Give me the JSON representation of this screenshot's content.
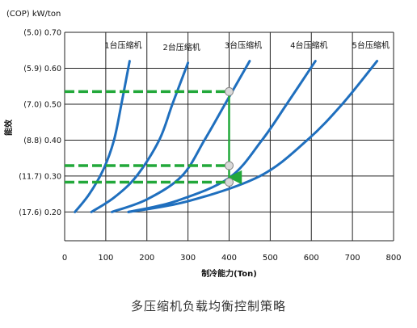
{
  "caption": "多压缩机负载均衡控制策略",
  "colors": {
    "curve": "#1f6fbe",
    "guide": "#22a83a",
    "grid": "#222222",
    "marker_fill": "#d9d9d9",
    "text": "#111111"
  },
  "chart_data": {
    "type": "line",
    "title": "",
    "ylabel_top": "(COP) kW/ton",
    "ylabel_side": "能效",
    "xlabel": "制冷能力(Ton)",
    "xlim": [
      0,
      800
    ],
    "ylim": [
      0.12,
      0.7
    ],
    "x_ticks": [
      0,
      100,
      200,
      300,
      400,
      500,
      600,
      700,
      800
    ],
    "y_ticks": [
      {
        "value": 0.7,
        "label": "(5.0) 0.70"
      },
      {
        "value": 0.6,
        "label": "(5.9) 0.60"
      },
      {
        "value": 0.5,
        "label": "(7.0) 0.50"
      },
      {
        "value": 0.4,
        "label": "(8.8) 0.40"
      },
      {
        "value": 0.3,
        "label": "(11.7) 0.30"
      },
      {
        "value": 0.2,
        "label": "(17.6) 0.20"
      }
    ],
    "grid": true,
    "series": [
      {
        "name": "1台压缩机",
        "points": [
          [
            25,
            0.2
          ],
          [
            60,
            0.25
          ],
          [
            95,
            0.32
          ],
          [
            120,
            0.4
          ],
          [
            138,
            0.5
          ],
          [
            158,
            0.62
          ]
        ]
      },
      {
        "name": "2台压缩机",
        "points": [
          [
            65,
            0.2
          ],
          [
            120,
            0.24
          ],
          [
            175,
            0.3
          ],
          [
            230,
            0.4
          ],
          [
            262,
            0.5
          ],
          [
            300,
            0.615
          ]
        ]
      },
      {
        "name": "3台压缩机",
        "points": [
          [
            115,
            0.2
          ],
          [
            200,
            0.235
          ],
          [
            285,
            0.3
          ],
          [
            340,
            0.4
          ],
          [
            390,
            0.5
          ],
          [
            450,
            0.62
          ]
        ]
      },
      {
        "name": "4台压缩机",
        "points": [
          [
            155,
            0.2
          ],
          [
            270,
            0.23
          ],
          [
            400,
            0.295
          ],
          [
            480,
            0.4
          ],
          [
            540,
            0.5
          ],
          [
            610,
            0.62
          ]
        ]
      },
      {
        "name": "5台压缩机",
        "points": [
          [
            155,
            0.2
          ],
          [
            300,
            0.23
          ],
          [
            475,
            0.3
          ],
          [
            590,
            0.4
          ],
          [
            675,
            0.5
          ],
          [
            760,
            0.62
          ]
        ]
      }
    ],
    "guides": {
      "horizontal": [
        {
          "y": 0.535,
          "x_from": 0,
          "x_to": 400
        },
        {
          "y": 0.329,
          "x_from": 0,
          "x_to": 400
        },
        {
          "y": 0.283,
          "x_from": 0,
          "x_to": 400
        }
      ],
      "vertical": {
        "x": 400,
        "y_from": 0.535,
        "y_to": 0.283
      },
      "markers": [
        {
          "x": 400,
          "y": 0.535
        },
        {
          "x": 400,
          "y": 0.329
        },
        {
          "x": 400,
          "y": 0.283
        }
      ]
    }
  }
}
